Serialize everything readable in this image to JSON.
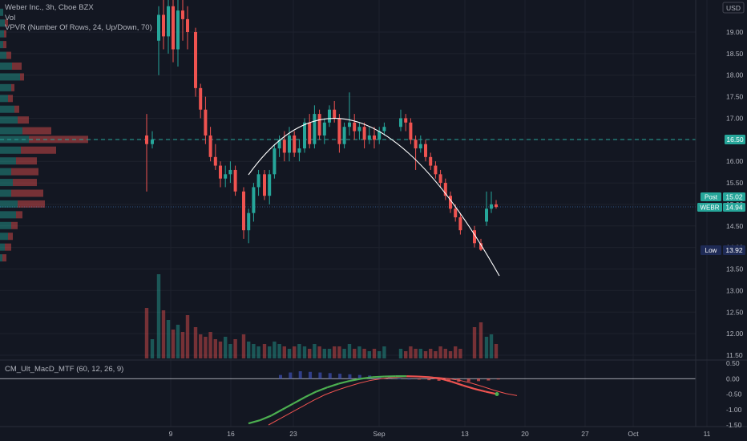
{
  "legend": {
    "symbol": "Weber Inc., 3h, Cboe BZX",
    "vol": "Vol",
    "vpvr": "VPVR (Number Of Rows, 24, Up/Down, 70)",
    "macd": "CM_Ult_MacD_MTF (60, 12, 26, 9)"
  },
  "currency": "USD",
  "price_axis": {
    "ticks": [
      "19.00",
      "18.50",
      "18.00",
      "17.50",
      "17.00",
      "16.50",
      "16.00",
      "15.50",
      "15.00",
      "14.50",
      "14.00",
      "13.50",
      "13.00",
      "12.50",
      "12.00",
      "11.50"
    ]
  },
  "macd_axis": {
    "ticks": [
      "0.50",
      "0.00",
      "-0.50",
      "-1.00",
      "-1.50"
    ]
  },
  "time_axis": {
    "ticks": [
      "9",
      "16",
      "23",
      "Sep",
      "13",
      "20",
      "27",
      "Oct",
      "11"
    ]
  },
  "badges": {
    "level": "16.50",
    "post_label": "Post",
    "post_value": "15.02",
    "ticker_label": "WEBR",
    "ticker_value": "14.94",
    "low_label": "Low",
    "low_value": "13.92"
  },
  "colors": {
    "up": "#26a69a",
    "down": "#ef5350",
    "level_line": "#26a69a",
    "arc": "#ffffff"
  },
  "chart_data": {
    "type": "candlestick",
    "title": "Weber Inc., 3h, Cboe BZX",
    "ylim": [
      11.4,
      19.8
    ],
    "horizontal_level": 16.5,
    "ohlc": [
      [
        16.6,
        17.1,
        15.3,
        16.4
      ],
      [
        16.4,
        16.7,
        16.3,
        16.5
      ],
      [
        18.8,
        19.6,
        18.0,
        19.4
      ],
      [
        19.4,
        19.8,
        18.6,
        18.9
      ],
      [
        18.9,
        19.8,
        18.5,
        19.6
      ],
      [
        19.6,
        19.8,
        18.3,
        18.6
      ],
      [
        18.6,
        19.8,
        18.2,
        19.5
      ],
      [
        19.5,
        19.8,
        18.8,
        19.3
      ],
      [
        19.3,
        19.6,
        18.6,
        19.0
      ],
      [
        19.0,
        19.1,
        17.5,
        17.7
      ],
      [
        17.7,
        17.8,
        17.0,
        17.2
      ],
      [
        17.2,
        17.5,
        16.4,
        16.6
      ],
      [
        16.6,
        16.8,
        16.0,
        16.1
      ],
      [
        16.1,
        16.4,
        15.8,
        15.9
      ],
      [
        15.9,
        16.0,
        15.4,
        15.6
      ],
      [
        15.6,
        15.9,
        15.4,
        15.7
      ],
      [
        15.7,
        16.0,
        15.5,
        15.8
      ],
      [
        15.8,
        15.9,
        15.2,
        15.3
      ],
      [
        15.3,
        15.4,
        14.2,
        14.4
      ],
      [
        14.4,
        14.9,
        14.1,
        14.8
      ],
      [
        14.8,
        15.5,
        14.6,
        15.4
      ],
      [
        15.4,
        15.8,
        15.2,
        15.7
      ],
      [
        15.7,
        15.8,
        15.1,
        15.2
      ],
      [
        15.2,
        15.8,
        15.0,
        15.7
      ],
      [
        15.7,
        16.4,
        15.6,
        16.3
      ],
      [
        16.3,
        16.6,
        16.1,
        16.5
      ],
      [
        16.5,
        16.7,
        16.0,
        16.2
      ],
      [
        16.2,
        16.8,
        16.0,
        16.6
      ],
      [
        16.6,
        16.7,
        16.1,
        16.2
      ],
      [
        16.2,
        16.5,
        16.0,
        16.3
      ],
      [
        16.3,
        17.0,
        16.2,
        16.9
      ],
      [
        16.9,
        17.1,
        16.3,
        16.4
      ],
      [
        16.4,
        17.3,
        16.3,
        17.1
      ],
      [
        17.1,
        17.2,
        16.5,
        16.6
      ],
      [
        16.6,
        17.0,
        16.4,
        16.9
      ],
      [
        16.9,
        17.3,
        16.8,
        17.2
      ],
      [
        17.2,
        17.4,
        16.9,
        17.0
      ],
      [
        17.0,
        17.1,
        16.2,
        16.4
      ],
      [
        16.4,
        16.9,
        16.3,
        16.8
      ],
      [
        16.8,
        17.6,
        16.6,
        16.9
      ],
      [
        16.9,
        17.1,
        16.5,
        16.7
      ],
      [
        16.7,
        16.9,
        16.5,
        16.8
      ],
      [
        16.8,
        16.9,
        16.3,
        16.5
      ],
      [
        16.5,
        16.8,
        16.4,
        16.6
      ],
      [
        16.6,
        16.8,
        16.3,
        16.5
      ],
      [
        16.5,
        16.8,
        16.4,
        16.7
      ],
      [
        16.7,
        16.9,
        16.6,
        16.8
      ],
      [
        16.8,
        17.2,
        16.7,
        17.0
      ],
      [
        17.0,
        17.1,
        16.7,
        16.9
      ],
      [
        16.9,
        17.0,
        16.4,
        16.5
      ],
      [
        16.5,
        16.6,
        15.8,
        16.3
      ],
      [
        16.3,
        16.6,
        16.2,
        16.4
      ],
      [
        16.4,
        16.5,
        16.0,
        16.1
      ],
      [
        16.1,
        16.2,
        15.8,
        15.9
      ],
      [
        15.9,
        16.0,
        15.6,
        15.7
      ],
      [
        15.7,
        15.8,
        15.4,
        15.5
      ],
      [
        15.5,
        15.6,
        15.1,
        15.2
      ],
      [
        15.2,
        15.3,
        14.8,
        14.9
      ],
      [
        14.9,
        15.0,
        14.6,
        14.7
      ],
      [
        14.7,
        14.8,
        14.3,
        14.4
      ],
      [
        14.4,
        14.5,
        14.0,
        14.1
      ],
      [
        14.1,
        14.2,
        13.92,
        13.95
      ],
      [
        14.6,
        15.3,
        14.5,
        14.9
      ],
      [
        14.9,
        15.3,
        14.8,
        15.0
      ],
      [
        15.0,
        15.1,
        14.9,
        14.94
      ]
    ],
    "volume": [
      2.1,
      0.8,
      3.5,
      2.0,
      1.6,
      1.2,
      1.4,
      1.1,
      1.8,
      1.3,
      1.0,
      0.9,
      1.1,
      0.8,
      0.7,
      0.9,
      0.6,
      0.8,
      1.0,
      0.7,
      0.6,
      0.5,
      0.6,
      0.5,
      0.7,
      0.6,
      0.5,
      0.4,
      0.5,
      0.6,
      0.5,
      0.4,
      0.6,
      0.5,
      0.4,
      0.4,
      0.5,
      0.5,
      0.4,
      0.6,
      0.4,
      0.5,
      0.4,
      0.3,
      0.4,
      0.3,
      0.5,
      0.4,
      0.3,
      0.5,
      0.4,
      0.4,
      0.3,
      0.4,
      0.3,
      0.5,
      0.4,
      0.3,
      0.5,
      0.4,
      1.3,
      1.5,
      0.9,
      1.0,
      0.6
    ],
    "macd_line": [
      -1.45,
      -1.35,
      -1.2,
      -1.0,
      -0.8,
      -0.6,
      -0.42,
      -0.28,
      -0.16,
      -0.07,
      0.0,
      0.05,
      0.07,
      0.08,
      0.08,
      0.07,
      0.05,
      0.0,
      -0.1,
      -0.22,
      -0.33,
      -0.42,
      -0.5
    ],
    "signal_line": [
      -1.5,
      -1.3,
      -1.1,
      -0.9,
      -0.7,
      -0.52,
      -0.38,
      -0.26,
      -0.15,
      -0.06,
      0.0,
      0.04,
      0.06,
      0.07,
      0.06,
      0.04,
      0.0,
      -0.06,
      -0.15,
      -0.26,
      -0.38,
      -0.48,
      -0.55
    ],
    "macd_hist": [
      0.12,
      0.2,
      0.24,
      0.22,
      0.2,
      0.18,
      0.16,
      0.14,
      0.12,
      0.1,
      0.08,
      0.05,
      0.02,
      0.0,
      -0.03,
      -0.05,
      -0.07,
      -0.09,
      -0.1,
      -0.1,
      -0.08,
      -0.06,
      -0.02
    ],
    "macd_ylim": [
      -1.6,
      0.6
    ]
  }
}
